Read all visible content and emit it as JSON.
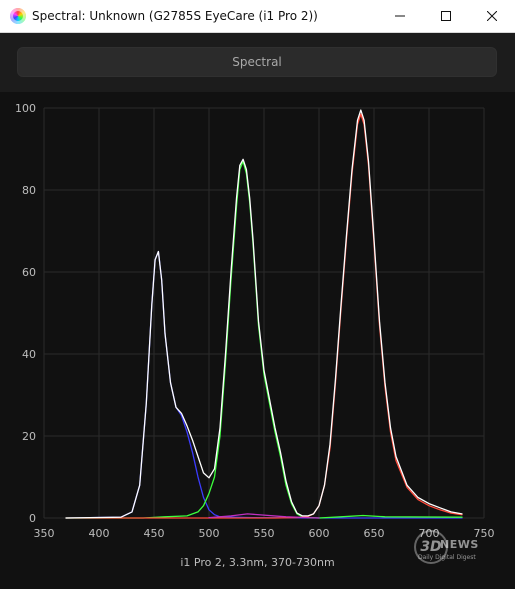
{
  "window": {
    "title": "Spectral: Unknown (G2785S EyeCare (i1 Pro 2))"
  },
  "icons": {
    "app": "spectral-app-icon",
    "minimize": "minimize-icon",
    "maximize": "maximize-icon",
    "close": "close-icon"
  },
  "header": {
    "button_label": "Spectral"
  },
  "caption": "i1 Pro 2, 3.3nm, 370-730nm",
  "watermark": {
    "mark": "3D",
    "name": "NEWS",
    "tagline": "Daily Digital Digest"
  },
  "colors": {
    "background": "#111111",
    "grid": "#2b2b2b",
    "white": "#ffffff",
    "red": "#ff4a3a",
    "green": "#3cff3c",
    "blue": "#3c3cff"
  },
  "chart_data": {
    "type": "line",
    "title": "",
    "xlabel": "",
    "ylabel": "",
    "xlim": [
      350,
      750
    ],
    "ylim": [
      0,
      100
    ],
    "x_ticks": [
      350,
      400,
      450,
      500,
      550,
      600,
      650,
      700,
      750
    ],
    "y_ticks": [
      0,
      20,
      40,
      60,
      80,
      100
    ],
    "grid": true,
    "series": [
      {
        "color": "#ffffff",
        "x": [
          370,
          420,
          430,
          437,
          443,
          448,
          451,
          454,
          457,
          460,
          465,
          470,
          475,
          480,
          485,
          490,
          495,
          500,
          505,
          510,
          515,
          520,
          525,
          528,
          531,
          534,
          537,
          540,
          545,
          550,
          555,
          560,
          565,
          570,
          575,
          580,
          585,
          590,
          595,
          600,
          605,
          610,
          615,
          620,
          625,
          630,
          635,
          638,
          641,
          645,
          650,
          655,
          660,
          665,
          670,
          680,
          690,
          700,
          710,
          720,
          730
        ],
        "y": [
          0,
          0.2,
          1.5,
          8,
          28,
          52,
          63,
          65,
          58,
          45,
          33,
          27,
          25.5,
          22.5,
          19,
          15,
          11,
          9.8,
          12,
          22,
          40,
          60,
          78,
          86,
          87.5,
          85,
          78,
          68,
          48,
          36,
          29,
          22,
          16,
          9,
          4,
          1.2,
          0.5,
          0.5,
          1,
          3,
          8,
          18,
          34,
          52,
          69,
          85,
          97,
          99.5,
          97,
          87,
          68,
          48,
          33,
          22,
          15,
          8,
          5,
          3.5,
          2.5,
          1.5,
          1
        ]
      },
      {
        "color": "#3c3cff",
        "x": [
          370,
          420,
          430,
          437,
          443,
          448,
          451,
          454,
          457,
          460,
          465,
          470,
          475,
          480,
          485,
          490,
          495,
          500,
          505,
          510,
          520,
          540,
          600,
          730
        ],
        "y": [
          0,
          0.2,
          1.5,
          8,
          28,
          52,
          63,
          65,
          58,
          45,
          33,
          27,
          25,
          21,
          16,
          10,
          5,
          2,
          0.8,
          0.3,
          0.2,
          0.1,
          0,
          0
        ]
      },
      {
        "color": "#3cff3c",
        "x": [
          370,
          440,
          460,
          480,
          490,
          495,
          500,
          505,
          510,
          515,
          520,
          525,
          528,
          531,
          534,
          537,
          540,
          545,
          550,
          555,
          560,
          565,
          570,
          575,
          580,
          585,
          590,
          600,
          620,
          640,
          660,
          730
        ],
        "y": [
          0,
          0,
          0.3,
          0.5,
          1.5,
          3,
          6,
          10,
          20,
          38,
          58,
          76,
          85,
          87,
          84,
          77,
          67,
          47,
          35,
          28,
          21,
          15,
          8,
          3.5,
          1,
          0.3,
          0.1,
          0,
          0.3,
          0.6,
          0.3,
          0.2
        ]
      },
      {
        "color": "#ff4a3a",
        "x": [
          370,
          560,
          580,
          585,
          590,
          595,
          600,
          605,
          610,
          615,
          620,
          625,
          630,
          635,
          638,
          641,
          645,
          650,
          655,
          660,
          665,
          670,
          680,
          690,
          700,
          710,
          720,
          730
        ],
        "y": [
          0,
          0,
          0.1,
          0.2,
          0.4,
          1,
          3,
          8,
          17,
          33,
          51,
          68,
          84,
          96,
          98.5,
          96,
          86,
          67,
          47,
          32,
          21,
          14,
          7.5,
          4.5,
          3,
          2,
          1.2,
          0.8
        ]
      },
      {
        "color": "#c030c0",
        "x": [
          500,
          520,
          535,
          550,
          570,
          590,
          600
        ],
        "y": [
          0.1,
          0.5,
          1,
          0.7,
          0.3,
          0.1,
          0
        ]
      }
    ]
  }
}
